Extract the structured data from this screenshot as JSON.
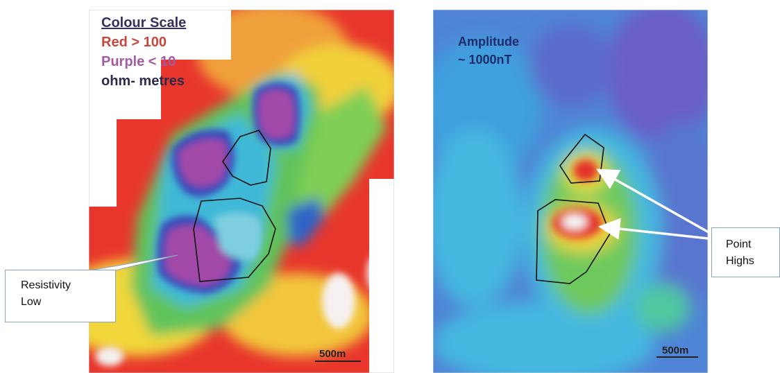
{
  "left_map": {
    "legend_title": "Colour Scale",
    "legend_red": "Red > 100",
    "legend_purple": "Purple < 10",
    "legend_unit": "ohm- metres",
    "scale_label": "500m",
    "colors": {
      "red": "#e8362c",
      "yellow": "#f2e23a",
      "green": "#5fc35a",
      "blue": "#2f63c8",
      "purple": "#a24aa8"
    }
  },
  "right_map": {
    "amplitude_label": "Amplitude",
    "amplitude_value": "~ 1000nT",
    "scale_label": "500m",
    "colors": {
      "base_blue": "#4f84d6",
      "cyan": "#43bde0",
      "green": "#6ec95d",
      "red": "#e3322b"
    }
  },
  "callouts": {
    "resistivity_line1": "Resistivity",
    "resistivity_line2": "Low",
    "point_highs_line1": "Point",
    "point_highs_line2": "Highs"
  }
}
